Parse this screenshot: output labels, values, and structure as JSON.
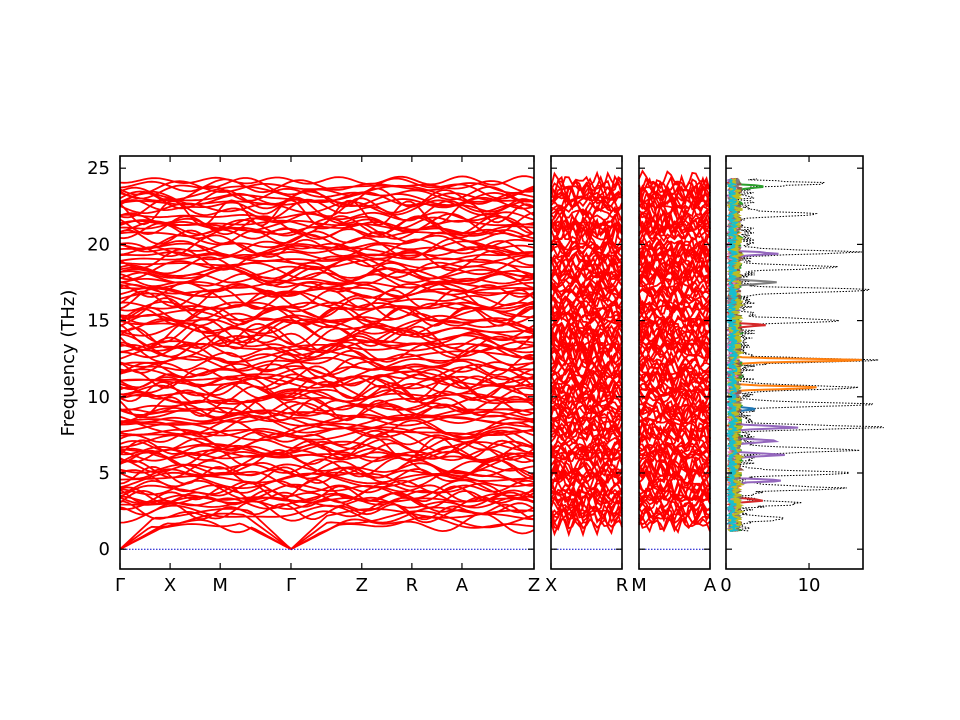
{
  "chart_data": {
    "type": "line",
    "ylabel": "Frequency (THz)",
    "ylim": [
      -1.3,
      25.8
    ],
    "yticks": [
      0,
      5,
      10,
      15,
      20,
      25
    ],
    "grid": false,
    "colors": {
      "bands": "#ff0000",
      "zero_line": "#0000cc",
      "total_dos": "#000000",
      "pdos": [
        "#1f77b4",
        "#ff7f0e",
        "#2ca02c",
        "#d62728",
        "#9467bd",
        "#8c564b",
        "#e377c2",
        "#7f7f7f",
        "#bcbd22",
        "#17becf"
      ]
    },
    "panels": [
      {
        "kind": "band",
        "path_labels": [
          "Γ",
          "X",
          "M",
          "Γ",
          "Z",
          "R",
          "A",
          "Z"
        ],
        "path_positions": [
          0,
          0.121,
          0.242,
          0.413,
          0.584,
          0.705,
          0.826,
          1.0
        ]
      },
      {
        "kind": "band",
        "path_labels": [
          "X",
          "R"
        ]
      },
      {
        "kind": "band",
        "path_labels": [
          "M",
          "A"
        ]
      },
      {
        "kind": "dos",
        "xlim": [
          0,
          16.5
        ],
        "xticks": [
          0,
          10
        ],
        "pdos_peaks": [
          {
            "freq": 10.6,
            "height": 10.5,
            "series": 1
          },
          {
            "freq": 12.4,
            "height": 15.5,
            "series": 1
          },
          {
            "freq": 8.0,
            "height": 7.5,
            "series": 4
          },
          {
            "freq": 7.1,
            "height": 5.5,
            "series": 4
          },
          {
            "freq": 6.2,
            "height": 6.0,
            "series": 4
          },
          {
            "freq": 4.5,
            "height": 5.5,
            "series": 4
          },
          {
            "freq": 19.4,
            "height": 5.0,
            "series": 4
          },
          {
            "freq": 17.5,
            "height": 5.0,
            "series": 7
          },
          {
            "freq": 14.7,
            "height": 3.5,
            "series": 3
          },
          {
            "freq": 23.8,
            "height": 3.0,
            "series": 2
          },
          {
            "freq": 3.2,
            "height": 3.5,
            "series": 3
          },
          {
            "freq": 9.2,
            "height": 3.0,
            "series": 0
          }
        ],
        "total_dos_peaks": [
          {
            "freq": 24.0,
            "height": 9.5
          },
          {
            "freq": 22.0,
            "height": 8.5
          },
          {
            "freq": 19.5,
            "height": 13.0
          },
          {
            "freq": 18.5,
            "height": 11.0
          },
          {
            "freq": 17.0,
            "height": 16.0
          },
          {
            "freq": 15.0,
            "height": 11.0
          },
          {
            "freq": 12.4,
            "height": 16.0
          },
          {
            "freq": 10.6,
            "height": 14.0
          },
          {
            "freq": 9.5,
            "height": 15.0
          },
          {
            "freq": 8.0,
            "height": 16.0
          },
          {
            "freq": 6.5,
            "height": 14.0
          },
          {
            "freq": 5.0,
            "height": 12.0
          },
          {
            "freq": 4.0,
            "height": 11.5
          },
          {
            "freq": 3.0,
            "height": 7.0
          },
          {
            "freq": 2.0,
            "height": 5.0
          }
        ]
      }
    ]
  }
}
